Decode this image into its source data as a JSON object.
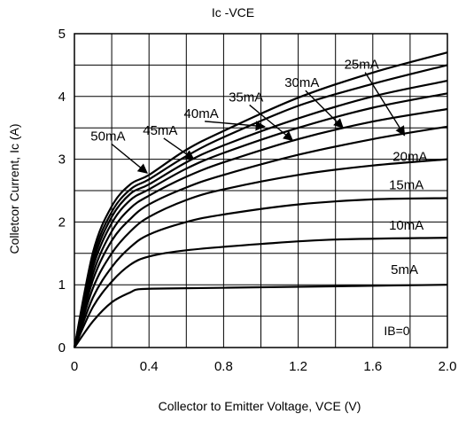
{
  "chart_data": {
    "type": "line",
    "title": "Ic -VCE",
    "xlabel": "Collector to Emitter Voltage, VCE (V)",
    "ylabel": "Colletcor Current, Ic (A)",
    "xlim": [
      0,
      2.0
    ],
    "ylim": [
      0,
      5
    ],
    "x_ticks": [
      "0",
      "0.4",
      "0.8",
      "1.2",
      "1.6",
      "2.0"
    ],
    "y_ticks": [
      "0",
      "1",
      "2",
      "3",
      "4",
      "5"
    ],
    "grid": true,
    "ib_zero_label": "IB=0",
    "series": [
      {
        "name": "5mA",
        "x": [
          0,
          0.1,
          0.2,
          0.3,
          0.35,
          0.5,
          1.0,
          1.5,
          2.0
        ],
        "y": [
          0,
          0.42,
          0.72,
          0.88,
          0.93,
          0.94,
          0.96,
          0.98,
          1.0
        ]
      },
      {
        "name": "10mA",
        "x": [
          0,
          0.1,
          0.2,
          0.3,
          0.4,
          0.6,
          1.0,
          1.4,
          2.0
        ],
        "y": [
          0,
          0.65,
          1.05,
          1.32,
          1.45,
          1.55,
          1.65,
          1.72,
          1.75
        ]
      },
      {
        "name": "15mA",
        "x": [
          0,
          0.1,
          0.2,
          0.3,
          0.4,
          0.6,
          0.8,
          1.2,
          1.6,
          2.0
        ],
        "y": [
          0,
          0.8,
          1.28,
          1.6,
          1.8,
          2.0,
          2.12,
          2.28,
          2.36,
          2.38
        ]
      },
      {
        "name": "20mA",
        "x": [
          0,
          0.1,
          0.2,
          0.3,
          0.4,
          0.6,
          0.8,
          1.2,
          1.6,
          2.0
        ],
        "y": [
          0,
          0.95,
          1.5,
          1.85,
          2.08,
          2.35,
          2.52,
          2.75,
          2.9,
          3.0
        ]
      },
      {
        "name": "25mA",
        "x": [
          0,
          0.1,
          0.2,
          0.3,
          0.4,
          0.6,
          0.8,
          1.2,
          1.6,
          2.0
        ],
        "y": [
          0,
          1.08,
          1.7,
          2.05,
          2.28,
          2.55,
          2.75,
          3.07,
          3.32,
          3.52
        ]
      },
      {
        "name": "30mA",
        "x": [
          0,
          0.1,
          0.2,
          0.3,
          0.4,
          0.6,
          0.8,
          1.2,
          1.6,
          2.0
        ],
        "y": [
          0,
          1.18,
          1.85,
          2.22,
          2.42,
          2.72,
          2.95,
          3.32,
          3.6,
          3.8
        ]
      },
      {
        "name": "35mA",
        "x": [
          0,
          0.1,
          0.2,
          0.3,
          0.4,
          0.6,
          0.8,
          1.2,
          1.6,
          2.0
        ],
        "y": [
          0,
          1.28,
          1.98,
          2.35,
          2.52,
          2.85,
          3.1,
          3.5,
          3.82,
          4.05
        ]
      },
      {
        "name": "40mA",
        "x": [
          0,
          0.1,
          0.2,
          0.3,
          0.4,
          0.6,
          0.8,
          1.2,
          1.6,
          2.0
        ],
        "y": [
          0,
          1.36,
          2.08,
          2.45,
          2.6,
          2.95,
          3.22,
          3.65,
          4.0,
          4.25
        ]
      },
      {
        "name": "45mA",
        "x": [
          0,
          0.1,
          0.2,
          0.3,
          0.4,
          0.6,
          0.8,
          1.2,
          1.6,
          2.0
        ],
        "y": [
          0,
          1.44,
          2.16,
          2.52,
          2.68,
          3.05,
          3.35,
          3.85,
          4.2,
          4.5
        ]
      },
      {
        "name": "50mA",
        "x": [
          0,
          0.1,
          0.2,
          0.3,
          0.4,
          0.6,
          0.8,
          1.2,
          1.6,
          2.0
        ],
        "y": [
          0,
          1.52,
          2.25,
          2.6,
          2.75,
          3.15,
          3.45,
          3.98,
          4.38,
          4.7
        ]
      }
    ],
    "annotations": [
      {
        "text": "5mA",
        "x": 1.77,
        "y": 1.17,
        "ax": 1.95,
        "ay": 1.02,
        "arrow": false
      },
      {
        "text": "10mA",
        "x": 1.78,
        "y": 1.88,
        "ax": 1.95,
        "ay": 1.76,
        "arrow": false
      },
      {
        "text": "15mA",
        "x": 1.78,
        "y": 2.52,
        "ax": 1.72,
        "ay": 2.38,
        "arrow": false
      },
      {
        "text": "20mA",
        "x": 1.8,
        "y": 2.97,
        "ax": 1.72,
        "ay": 3.0,
        "arrow": false
      },
      {
        "text": "25mA",
        "x": 1.54,
        "y": 4.44,
        "ax": 1.77,
        "ay": 3.38,
        "arrow": true
      },
      {
        "text": "30mA",
        "x": 1.22,
        "y": 4.15,
        "ax": 1.44,
        "ay": 3.5,
        "arrow": true
      },
      {
        "text": "35mA",
        "x": 0.92,
        "y": 3.92,
        "ax": 1.17,
        "ay": 3.3,
        "arrow": true
      },
      {
        "text": "40mA",
        "x": 0.68,
        "y": 3.66,
        "ax": 1.02,
        "ay": 3.52,
        "arrow": true
      },
      {
        "text": "45mA",
        "x": 0.46,
        "y": 3.39,
        "ax": 0.64,
        "ay": 3.0,
        "arrow": true
      },
      {
        "text": "50mA",
        "x": 0.18,
        "y": 3.3,
        "ax": 0.39,
        "ay": 2.78,
        "arrow": true
      }
    ]
  }
}
